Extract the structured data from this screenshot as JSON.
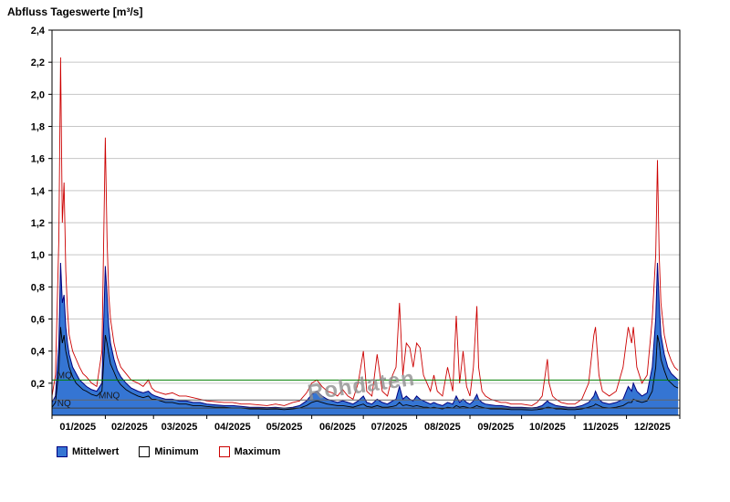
{
  "title": "Abfluss Tageswerte [m³/s]",
  "watermark": {
    "text": "Rohdaten",
    "color": "#909090"
  },
  "legend": [
    {
      "label": "Mittelwert",
      "fill": "#3575d3",
      "stroke": "#000080"
    },
    {
      "label": "Minimum",
      "fill": "#ffffff",
      "stroke": "#000000"
    },
    {
      "label": "Maximum",
      "fill": "#ffffff",
      "stroke": "#cc0000"
    }
  ],
  "colors": {
    "grid": "#c6c6c6",
    "border": "#000000",
    "mean_fill": "#3575d3",
    "mean_stroke": "#000080",
    "min_stroke": "#000000",
    "max_stroke": "#cc0000",
    "mq_green": "#007f00"
  },
  "chart_data": {
    "type": "line",
    "title": "Abfluss Tageswerte [m³/s]",
    "xlabel": "",
    "ylabel": "",
    "xlim": [
      0,
      365
    ],
    "ylim": [
      0,
      2.4
    ],
    "grid": "horizontal",
    "legend_position": "bottom-left",
    "y_ticks": [
      {
        "value": 0.2,
        "label": "0,2"
      },
      {
        "value": 0.4,
        "label": "0,4"
      },
      {
        "value": 0.6,
        "label": "0,6"
      },
      {
        "value": 0.8,
        "label": "0,8"
      },
      {
        "value": 1.0,
        "label": "1,0"
      },
      {
        "value": 1.2,
        "label": "1,2"
      },
      {
        "value": 1.4,
        "label": "1,4"
      },
      {
        "value": 1.6,
        "label": "1,6"
      },
      {
        "value": 1.8,
        "label": "1,8"
      },
      {
        "value": 2.0,
        "label": "2,0"
      },
      {
        "value": 2.2,
        "label": "2,2"
      },
      {
        "value": 2.4,
        "label": "2,4"
      }
    ],
    "x_ticks": [
      {
        "label": "01/2025",
        "day": 15
      },
      {
        "label": "02/2025",
        "day": 45
      },
      {
        "label": "03/2025",
        "day": 74
      },
      {
        "label": "04/2025",
        "day": 105
      },
      {
        "label": "05/2025",
        "day": 135
      },
      {
        "label": "06/2025",
        "day": 166
      },
      {
        "label": "07/2025",
        "day": 196
      },
      {
        "label": "08/2025",
        "day": 227
      },
      {
        "label": "09/2025",
        "day": 258
      },
      {
        "label": "10/2025",
        "day": 288
      },
      {
        "label": "11/2025",
        "day": 319
      },
      {
        "label": "12/2025",
        "day": 349
      }
    ],
    "month_boundaries": [
      0,
      31,
      59,
      90,
      120,
      151,
      181,
      212,
      243,
      273,
      304,
      334,
      365
    ],
    "reference_lines": [
      {
        "label": "MQ",
        "value": 0.22,
        "color": "#007f00",
        "label_day": 2
      },
      {
        "label": "MNQ",
        "value": 0.095,
        "color": "#666666",
        "label_day": 26
      },
      {
        "label": "NQ",
        "value": 0.045,
        "color": "#404040",
        "label_day": 2
      }
    ],
    "x": [
      0,
      2,
      4,
      5,
      6,
      7,
      8,
      9,
      10,
      12,
      14,
      16,
      18,
      20,
      23,
      26,
      29,
      31,
      32,
      33,
      34,
      36,
      38,
      40,
      43,
      46,
      50,
      53,
      56,
      58,
      60,
      63,
      66,
      70,
      74,
      78,
      82,
      86,
      90,
      95,
      100,
      105,
      110,
      115,
      120,
      125,
      130,
      135,
      140,
      144,
      148,
      151,
      154,
      157,
      160,
      163,
      166,
      169,
      172,
      175,
      178,
      181,
      183,
      186,
      189,
      192,
      195,
      198,
      200,
      202,
      204,
      206,
      208,
      210,
      212,
      214,
      216,
      218,
      220,
      222,
      224,
      227,
      230,
      233,
      235,
      237,
      239,
      241,
      243,
      245,
      247,
      248,
      250,
      252,
      255,
      258,
      261,
      264,
      267,
      270,
      273,
      276,
      279,
      282,
      285,
      288,
      289,
      291,
      293,
      296,
      300,
      304,
      308,
      312,
      315,
      316,
      318,
      320,
      324,
      328,
      332,
      335,
      337,
      338,
      340,
      343,
      346,
      349,
      351,
      352,
      353,
      354,
      356,
      358,
      360,
      362,
      364
    ],
    "series": [
      {
        "name": "Mittelwert",
        "style": "area",
        "fill": "#3575d3",
        "stroke": "#000080",
        "values": [
          0.08,
          0.12,
          0.45,
          0.95,
          0.7,
          0.75,
          0.55,
          0.45,
          0.38,
          0.3,
          0.26,
          0.22,
          0.2,
          0.18,
          0.16,
          0.15,
          0.2,
          0.93,
          0.75,
          0.55,
          0.45,
          0.35,
          0.28,
          0.24,
          0.2,
          0.17,
          0.15,
          0.14,
          0.15,
          0.13,
          0.12,
          0.11,
          0.1,
          0.1,
          0.09,
          0.09,
          0.08,
          0.08,
          0.07,
          0.065,
          0.06,
          0.06,
          0.055,
          0.05,
          0.05,
          0.048,
          0.05,
          0.045,
          0.05,
          0.06,
          0.09,
          0.13,
          0.15,
          0.12,
          0.1,
          0.09,
          0.08,
          0.09,
          0.08,
          0.07,
          0.09,
          0.12,
          0.08,
          0.07,
          0.1,
          0.08,
          0.07,
          0.09,
          0.1,
          0.18,
          0.1,
          0.12,
          0.1,
          0.09,
          0.12,
          0.1,
          0.09,
          0.08,
          0.07,
          0.08,
          0.07,
          0.06,
          0.08,
          0.07,
          0.12,
          0.08,
          0.1,
          0.08,
          0.07,
          0.09,
          0.13,
          0.1,
          0.08,
          0.07,
          0.065,
          0.06,
          0.06,
          0.055,
          0.05,
          0.05,
          0.05,
          0.048,
          0.046,
          0.05,
          0.06,
          0.09,
          0.08,
          0.07,
          0.06,
          0.055,
          0.05,
          0.05,
          0.06,
          0.08,
          0.12,
          0.15,
          0.1,
          0.08,
          0.07,
          0.08,
          0.1,
          0.18,
          0.15,
          0.2,
          0.15,
          0.12,
          0.14,
          0.3,
          0.6,
          0.95,
          0.7,
          0.5,
          0.38,
          0.3,
          0.26,
          0.24,
          0.22
        ]
      },
      {
        "name": "Minimum",
        "style": "line",
        "stroke": "#000000",
        "values": [
          0.05,
          0.08,
          0.28,
          0.55,
          0.45,
          0.5,
          0.4,
          0.35,
          0.3,
          0.24,
          0.2,
          0.18,
          0.16,
          0.15,
          0.13,
          0.12,
          0.15,
          0.5,
          0.45,
          0.38,
          0.32,
          0.27,
          0.22,
          0.19,
          0.16,
          0.14,
          0.12,
          0.11,
          0.12,
          0.1,
          0.1,
          0.09,
          0.08,
          0.08,
          0.07,
          0.07,
          0.06,
          0.06,
          0.055,
          0.05,
          0.05,
          0.045,
          0.045,
          0.04,
          0.04,
          0.038,
          0.04,
          0.035,
          0.04,
          0.045,
          0.06,
          0.08,
          0.09,
          0.08,
          0.07,
          0.065,
          0.06,
          0.06,
          0.055,
          0.05,
          0.06,
          0.07,
          0.055,
          0.05,
          0.06,
          0.05,
          0.05,
          0.055,
          0.06,
          0.08,
          0.06,
          0.065,
          0.06,
          0.055,
          0.06,
          0.055,
          0.05,
          0.05,
          0.045,
          0.05,
          0.045,
          0.04,
          0.05,
          0.045,
          0.06,
          0.05,
          0.055,
          0.05,
          0.045,
          0.05,
          0.06,
          0.055,
          0.05,
          0.045,
          0.04,
          0.04,
          0.04,
          0.038,
          0.035,
          0.035,
          0.035,
          0.034,
          0.033,
          0.035,
          0.04,
          0.05,
          0.05,
          0.045,
          0.04,
          0.04,
          0.035,
          0.035,
          0.04,
          0.05,
          0.06,
          0.07,
          0.06,
          0.05,
          0.045,
          0.05,
          0.06,
          0.08,
          0.08,
          0.1,
          0.09,
          0.08,
          0.09,
          0.15,
          0.3,
          0.5,
          0.45,
          0.35,
          0.28,
          0.22,
          0.2,
          0.18,
          0.17
        ]
      },
      {
        "name": "Maximum",
        "style": "line",
        "stroke": "#cc0000",
        "values": [
          0.12,
          0.25,
          1.1,
          2.23,
          1.2,
          1.45,
          0.9,
          0.65,
          0.5,
          0.4,
          0.35,
          0.3,
          0.26,
          0.24,
          0.2,
          0.18,
          0.4,
          1.73,
          1.1,
          0.75,
          0.6,
          0.45,
          0.36,
          0.3,
          0.26,
          0.22,
          0.2,
          0.18,
          0.22,
          0.17,
          0.15,
          0.14,
          0.13,
          0.14,
          0.12,
          0.12,
          0.11,
          0.1,
          0.09,
          0.085,
          0.08,
          0.08,
          0.07,
          0.07,
          0.065,
          0.06,
          0.07,
          0.06,
          0.08,
          0.09,
          0.14,
          0.2,
          0.22,
          0.18,
          0.15,
          0.14,
          0.12,
          0.16,
          0.12,
          0.1,
          0.2,
          0.4,
          0.15,
          0.12,
          0.38,
          0.15,
          0.12,
          0.25,
          0.3,
          0.7,
          0.25,
          0.45,
          0.42,
          0.3,
          0.45,
          0.42,
          0.25,
          0.2,
          0.15,
          0.25,
          0.15,
          0.12,
          0.3,
          0.15,
          0.62,
          0.2,
          0.4,
          0.18,
          0.12,
          0.3,
          0.68,
          0.3,
          0.15,
          0.12,
          0.1,
          0.09,
          0.08,
          0.08,
          0.07,
          0.07,
          0.07,
          0.065,
          0.06,
          0.08,
          0.12,
          0.35,
          0.2,
          0.12,
          0.1,
          0.08,
          0.07,
          0.07,
          0.1,
          0.2,
          0.5,
          0.55,
          0.25,
          0.15,
          0.12,
          0.15,
          0.3,
          0.55,
          0.45,
          0.55,
          0.3,
          0.2,
          0.25,
          0.6,
          1.0,
          1.59,
          1.0,
          0.7,
          0.5,
          0.4,
          0.34,
          0.3,
          0.28
        ]
      }
    ]
  }
}
